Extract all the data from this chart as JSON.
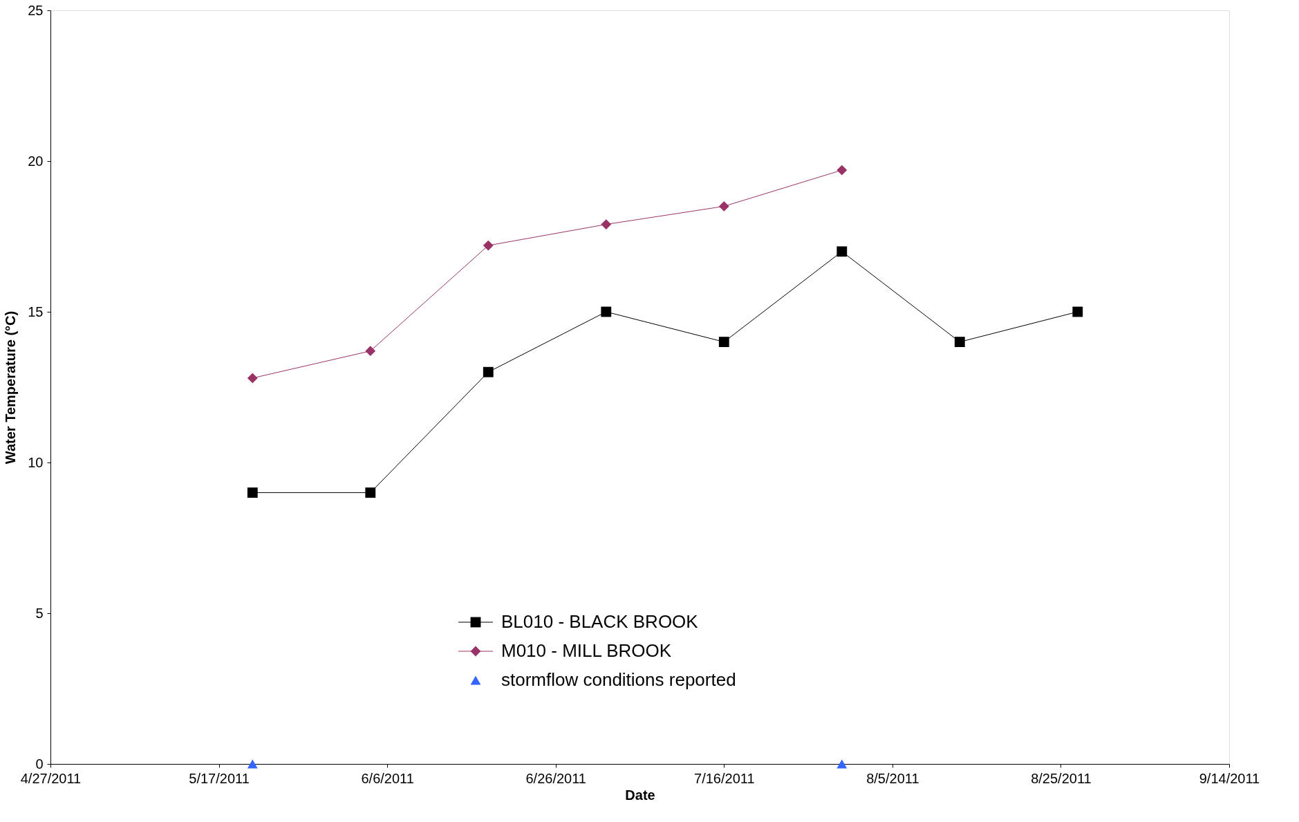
{
  "chart_data": {
    "type": "line",
    "xlabel": "Date",
    "ylabel": "Water Temperature (°C)",
    "series": [
      {
        "name": "BL010 - BLACK BROOK",
        "color": "#000000",
        "marker": "square",
        "x": [
          "2011-05-21",
          "2011-06-04",
          "2011-06-18",
          "2011-07-02",
          "2011-07-16",
          "2011-07-30",
          "2011-08-13",
          "2011-08-27"
        ],
        "values": [
          9,
          9,
          13,
          15,
          14,
          17,
          14,
          15
        ]
      },
      {
        "name": "M010 - MILL BROOK",
        "color": "#993366",
        "marker": "diamond",
        "x": [
          "2011-05-21",
          "2011-06-04",
          "2011-06-18",
          "2011-07-02",
          "2011-07-16",
          "2011-07-30"
        ],
        "values": [
          12.8,
          13.7,
          17.2,
          17.9,
          18.5,
          19.7
        ]
      },
      {
        "name": "stormflow conditions reported",
        "type": "scatter",
        "color": "#3366ff",
        "marker": "triangle",
        "x": [
          "2011-05-21",
          "2011-07-30"
        ],
        "values": [
          0,
          0
        ]
      }
    ],
    "xlim": [
      "2011-04-27",
      "2011-09-14"
    ],
    "xticks": [
      {
        "value": "2011-04-27",
        "label": "4/27/2011"
      },
      {
        "value": "2011-05-17",
        "label": "5/17/2011"
      },
      {
        "value": "2011-06-06",
        "label": "6/6/2011"
      },
      {
        "value": "2011-06-26",
        "label": "6/26/2011"
      },
      {
        "value": "2011-07-16",
        "label": "7/16/2011"
      },
      {
        "value": "2011-08-05",
        "label": "8/5/2011"
      },
      {
        "value": "2011-08-25",
        "label": "8/25/2011"
      },
      {
        "value": "2011-09-14",
        "label": "9/14/2011"
      }
    ],
    "ylim": [
      0,
      25
    ],
    "yticks": [
      0,
      5,
      10,
      15,
      20,
      25
    ],
    "grid": false,
    "legend": "bottom",
    "line_style": "solid"
  }
}
